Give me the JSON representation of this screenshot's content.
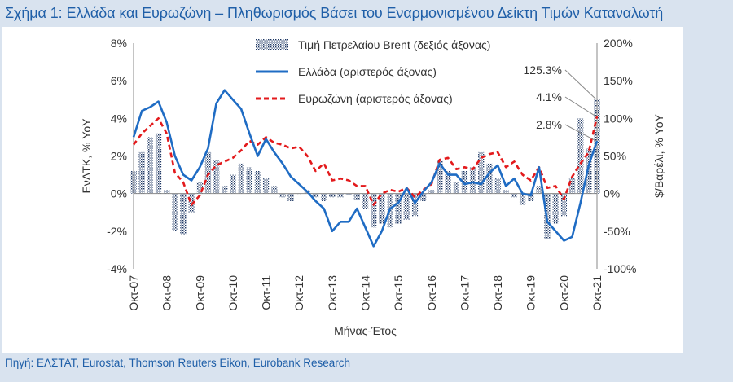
{
  "title": "Σχήμα 1: Ελλάδα και Ευρωζώνη – Πληθωρισμός Βάσει του Εναρμονισμένου Δείκτη Τιμών Καταναλωτή",
  "source": "Πηγή: ΕΛΣΤΑΤ, Eurostat, Thomson Reuters Eikon, Eurobank Research",
  "colors": {
    "greece": "#1f6cc4",
    "eurozone": "#e31a1c",
    "brent": "#1f3864",
    "text": "#333333",
    "title": "#1f5fa8"
  },
  "chart_data": {
    "type": "line",
    "title": "",
    "xlabel": "Μήνας-Έτος",
    "ylabel": "ΕνΔΤΚ, % YoY",
    "y2label": "$/Βαρέλι, % YoY",
    "ylim": [
      -4,
      8
    ],
    "y2lim": [
      -100,
      200
    ],
    "yticks": [
      "8%",
      "6%",
      "4%",
      "2%",
      "0%",
      "-2%",
      "-4%"
    ],
    "y2ticks": [
      "200%",
      "150%",
      "100%",
      "50%",
      "0%",
      "-50%",
      "-100%"
    ],
    "grid": false,
    "legend": "top-center",
    "x_tick_labels": [
      "Οκτ-07",
      "Οκτ-08",
      "Οκτ-09",
      "Οκτ-10",
      "Οκτ-11",
      "Οκτ-12",
      "Οκτ-13",
      "Οκτ-14",
      "Οκτ-15",
      "Οκτ-16",
      "Οκτ-17",
      "Οκτ-18",
      "Οκτ-19",
      "Οκτ-20",
      "Οκτ-21"
    ],
    "x_months": [
      "2007-10",
      "2008-01",
      "2008-04",
      "2008-07",
      "2008-10",
      "2009-01",
      "2009-04",
      "2009-07",
      "2009-10",
      "2010-01",
      "2010-04",
      "2010-07",
      "2010-10",
      "2011-01",
      "2011-04",
      "2011-07",
      "2011-10",
      "2012-01",
      "2012-04",
      "2012-07",
      "2012-10",
      "2013-01",
      "2013-04",
      "2013-07",
      "2013-10",
      "2014-01",
      "2014-04",
      "2014-07",
      "2014-10",
      "2015-01",
      "2015-04",
      "2015-07",
      "2015-10",
      "2016-01",
      "2016-04",
      "2016-07",
      "2016-10",
      "2017-01",
      "2017-04",
      "2017-07",
      "2017-10",
      "2018-01",
      "2018-04",
      "2018-07",
      "2018-10",
      "2019-01",
      "2019-04",
      "2019-07",
      "2019-10",
      "2020-01",
      "2020-04",
      "2020-07",
      "2020-10",
      "2021-01",
      "2021-04",
      "2021-07",
      "2021-10"
    ],
    "series": [
      {
        "name": "Τιμή Πετρελαίου Brent (δεξιός άξονας)",
        "axis": "right",
        "kind": "bar",
        "values": [
          30,
          55,
          75,
          80,
          5,
          -50,
          -55,
          -25,
          15,
          55,
          45,
          10,
          25,
          40,
          35,
          30,
          20,
          10,
          -5,
          -10,
          0,
          5,
          -5,
          -10,
          -5,
          -5,
          -2,
          -8,
          -20,
          -45,
          -40,
          -45,
          -40,
          -35,
          -30,
          -10,
          5,
          45,
          30,
          15,
          30,
          35,
          55,
          40,
          20,
          5,
          -5,
          -15,
          -10,
          10,
          -60,
          -40,
          -30,
          20,
          100,
          60,
          125.3
        ]
      },
      {
        "name": "Ελλάδα (αριστερός άξονας)",
        "axis": "left",
        "kind": "line",
        "values": [
          3.0,
          4.4,
          4.6,
          4.9,
          3.8,
          2.0,
          1.0,
          0.7,
          1.4,
          2.4,
          4.8,
          5.5,
          5.0,
          4.5,
          3.2,
          2.0,
          2.9,
          2.2,
          1.6,
          0.9,
          0.5,
          0.1,
          -0.4,
          -0.8,
          -2.0,
          -1.5,
          -1.5,
          -0.8,
          -1.8,
          -2.8,
          -2.0,
          -0.8,
          -0.5,
          0.3,
          -0.5,
          0.1,
          0.6,
          1.6,
          1.0,
          1.0,
          0.5,
          0.6,
          0.5,
          1.1,
          1.5,
          0.4,
          0.8,
          0.0,
          -0.1,
          1.4,
          -1.5,
          -2.0,
          -2.5,
          -2.3,
          -0.5,
          1.5,
          2.8
        ]
      },
      {
        "name": "Ευρωζώνη (αριστερός άξονας)",
        "axis": "left",
        "kind": "line",
        "values": [
          2.6,
          3.2,
          3.6,
          4.0,
          3.2,
          1.1,
          0.6,
          -0.6,
          -0.1,
          1.0,
          1.5,
          1.7,
          1.9,
          2.3,
          2.8,
          2.6,
          3.0,
          2.7,
          2.6,
          2.4,
          2.5,
          2.0,
          1.2,
          1.6,
          0.7,
          0.8,
          0.7,
          0.4,
          0.4,
          -0.6,
          0.0,
          0.2,
          0.1,
          0.3,
          -0.2,
          0.2,
          0.5,
          1.8,
          1.9,
          1.3,
          1.4,
          1.3,
          1.9,
          2.1,
          2.2,
          1.4,
          1.7,
          1.0,
          0.7,
          1.4,
          0.3,
          0.4,
          -0.3,
          0.9,
          1.6,
          2.2,
          4.1
        ]
      }
    ],
    "annotations": [
      "125.3%",
      "4.1%",
      "2.8%"
    ]
  }
}
